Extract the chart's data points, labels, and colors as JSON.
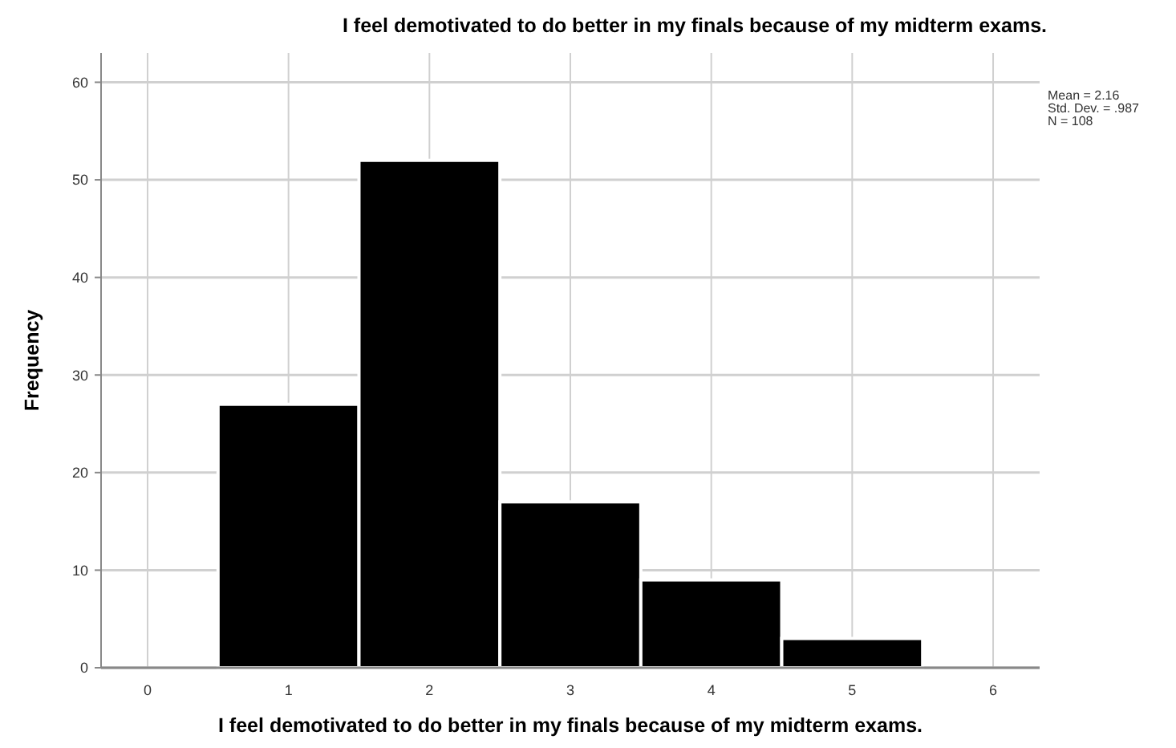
{
  "chart_data": {
    "type": "histogram",
    "title": "I feel demotivated to do better in my finals because of my midterm exams.",
    "xlabel": "I feel demotivated to do better in my finals because of my midterm exams.",
    "ylabel": "Frequency",
    "bins": [
      0.5,
      1.5,
      2.5,
      3.5,
      4.5,
      5.5
    ],
    "values": [
      27,
      52,
      17,
      9,
      3
    ],
    "color": "#000000",
    "xlim": [
      -0.33,
      6.33
    ],
    "xticks": [
      0,
      1,
      2,
      3,
      4,
      5,
      6
    ],
    "ylim": [
      0,
      63
    ],
    "yticks": [
      0,
      10,
      20,
      30,
      40,
      50,
      60
    ],
    "grid": true,
    "annotations": [
      "Mean = 2.16",
      "Std. Dev. = .987",
      "N = 108"
    ]
  }
}
